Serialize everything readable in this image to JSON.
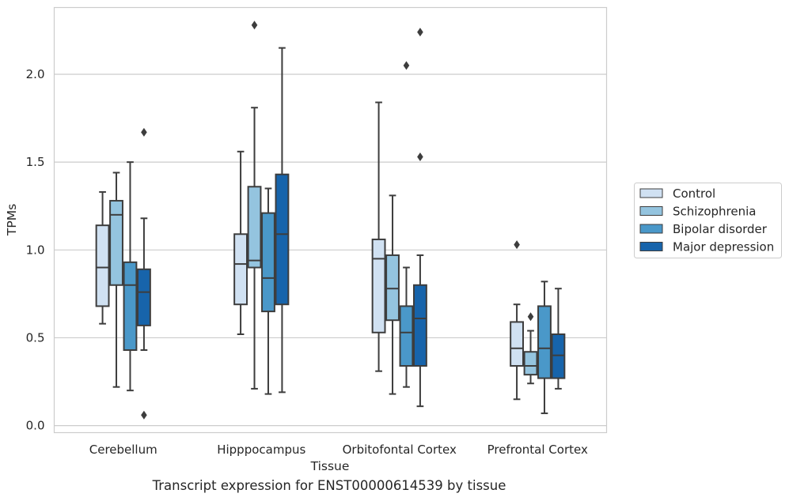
{
  "caption": "Transcript expression for ENST00000614539 by tissue",
  "chart_data": {
    "type": "boxplot",
    "xlabel": "Tissue",
    "ylabel": "TPMs",
    "ylim": [
      -0.04,
      2.38
    ],
    "yticks": [
      "0.0",
      "0.5",
      "1.0",
      "1.5",
      "2.0"
    ],
    "grid": true,
    "legend_position": "right",
    "categories": [
      "Cerebellum",
      "Hipppocampus",
      "Orbitofontal Cortex",
      "Prefrontal Cortex"
    ],
    "series": [
      {
        "name": "Control",
        "color": "#d0e1f2",
        "boxes": [
          {
            "whislo": 0.58,
            "q1": 0.68,
            "med": 0.9,
            "q3": 1.14,
            "whishi": 1.33,
            "fliers": []
          },
          {
            "whislo": 0.52,
            "q1": 0.69,
            "med": 0.92,
            "q3": 1.09,
            "whishi": 1.56,
            "fliers": []
          },
          {
            "whislo": 0.31,
            "q1": 0.53,
            "med": 0.95,
            "q3": 1.06,
            "whishi": 1.84,
            "fliers": []
          },
          {
            "whislo": 0.15,
            "q1": 0.34,
            "med": 0.44,
            "q3": 0.59,
            "whishi": 0.69,
            "fliers": [
              1.03
            ]
          }
        ]
      },
      {
        "name": "Schizophrenia",
        "color": "#94c4df",
        "boxes": [
          {
            "whislo": 0.22,
            "q1": 0.8,
            "med": 1.2,
            "q3": 1.28,
            "whishi": 1.44,
            "fliers": []
          },
          {
            "whislo": 0.21,
            "q1": 0.9,
            "med": 0.94,
            "q3": 1.36,
            "whishi": 1.81,
            "fliers": [
              2.28
            ]
          },
          {
            "whislo": 0.18,
            "q1": 0.6,
            "med": 0.78,
            "q3": 0.97,
            "whishi": 1.31,
            "fliers": []
          },
          {
            "whislo": 0.24,
            "q1": 0.29,
            "med": 0.34,
            "q3": 0.42,
            "whishi": 0.54,
            "fliers": [
              0.62
            ]
          }
        ]
      },
      {
        "name": "Bipolar disorder",
        "color": "#4a98c9",
        "boxes": [
          {
            "whislo": 0.2,
            "q1": 0.43,
            "med": 0.8,
            "q3": 0.93,
            "whishi": 1.5,
            "fliers": []
          },
          {
            "whislo": 0.18,
            "q1": 0.65,
            "med": 0.84,
            "q3": 1.21,
            "whishi": 1.35,
            "fliers": []
          },
          {
            "whislo": 0.22,
            "q1": 0.34,
            "med": 0.53,
            "q3": 0.68,
            "whishi": 0.9,
            "fliers": [
              2.05
            ]
          },
          {
            "whislo": 0.07,
            "q1": 0.27,
            "med": 0.44,
            "q3": 0.68,
            "whishi": 0.82,
            "fliers": []
          }
        ]
      },
      {
        "name": "Major depression",
        "color": "#1764ab",
        "boxes": [
          {
            "whislo": 0.43,
            "q1": 0.57,
            "med": 0.76,
            "q3": 0.89,
            "whishi": 1.18,
            "fliers": [
              1.67,
              0.06
            ]
          },
          {
            "whislo": 0.19,
            "q1": 0.69,
            "med": 1.09,
            "q3": 1.43,
            "whishi": 2.15,
            "fliers": []
          },
          {
            "whislo": 0.11,
            "q1": 0.34,
            "med": 0.61,
            "q3": 0.8,
            "whishi": 0.97,
            "fliers": [
              2.24,
              1.53
            ]
          },
          {
            "whislo": 0.21,
            "q1": 0.27,
            "med": 0.4,
            "q3": 0.52,
            "whishi": 0.78,
            "fliers": []
          }
        ]
      }
    ]
  }
}
